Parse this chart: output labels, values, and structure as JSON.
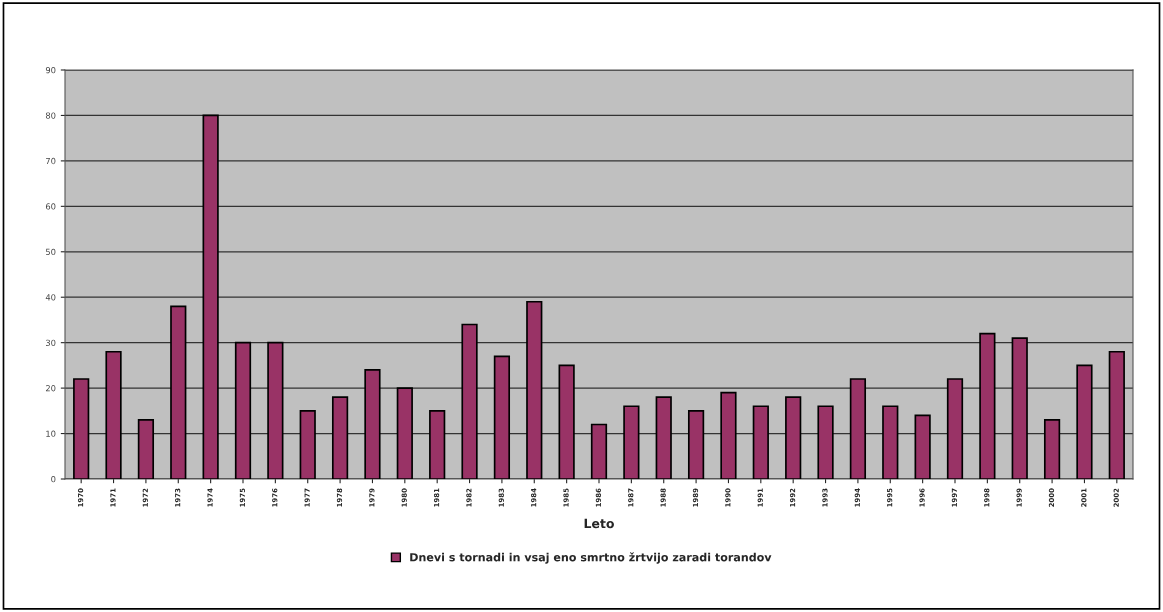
{
  "chart_data": {
    "type": "bar",
    "xlabel": "Leto",
    "categories": [
      "1970",
      "1971",
      "1972",
      "1973",
      "1974",
      "1975",
      "1976",
      "1977",
      "1978",
      "1979",
      "1980",
      "1981",
      "1982",
      "1983",
      "1984",
      "1985",
      "1986",
      "1987",
      "1988",
      "1989",
      "1990",
      "1991",
      "1992",
      "1993",
      "1994",
      "1995",
      "1996",
      "1997",
      "1998",
      "1999",
      "2000",
      "2001",
      "2002"
    ],
    "series": [
      {
        "name": "Dnevi s tornadi in vsaj eno smrtno žrtvijo zaradi torandov",
        "color": "#993366",
        "values": [
          22,
          28,
          13,
          38,
          80,
          30,
          30,
          15,
          18,
          24,
          20,
          15,
          34,
          27,
          39,
          25,
          12,
          16,
          18,
          15,
          19,
          16,
          18,
          16,
          22,
          16,
          14,
          22,
          32,
          31,
          13,
          25,
          28
        ]
      }
    ],
    "ylim": [
      0,
      90
    ],
    "yticks": [
      0,
      10,
      20,
      30,
      40,
      50,
      60,
      70,
      80,
      90
    ],
    "grid": "y",
    "legend": "bottom"
  }
}
